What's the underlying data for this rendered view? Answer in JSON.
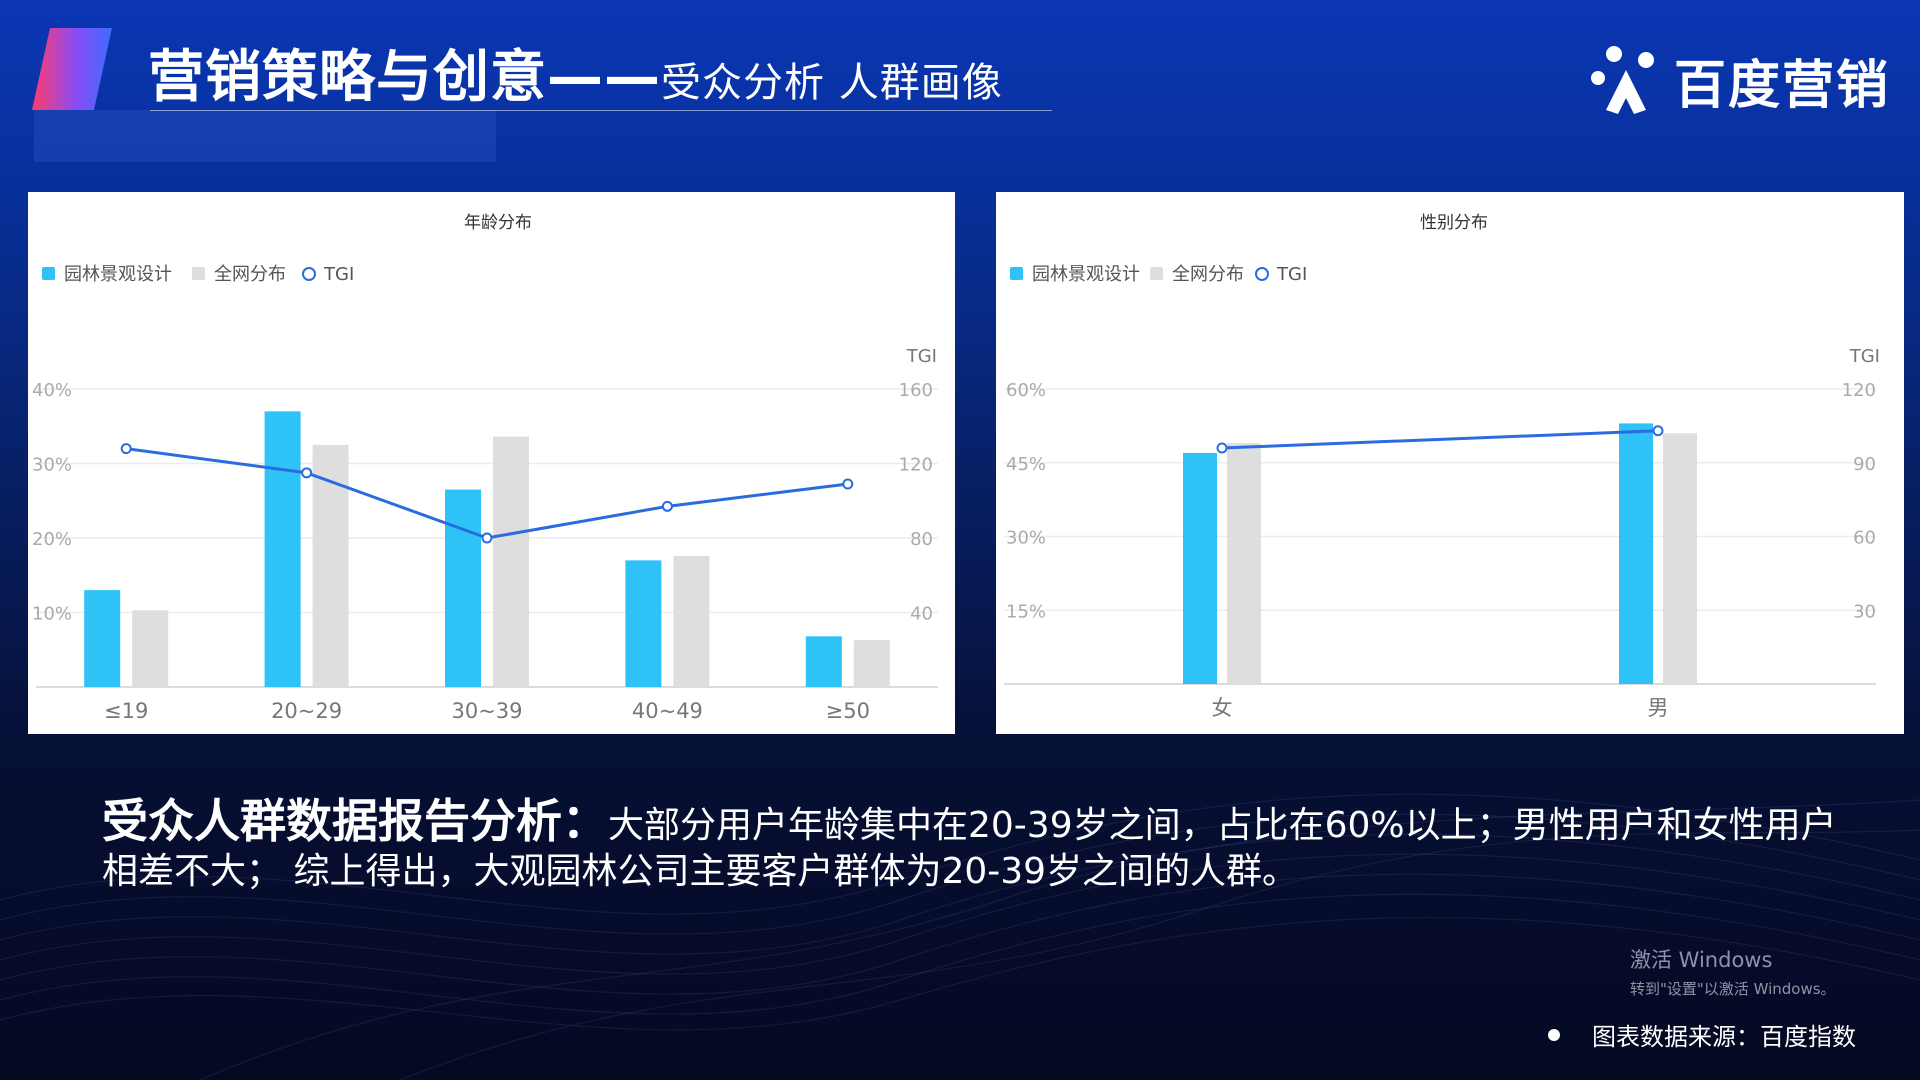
{
  "header": {
    "title_main": "营销策略与创意——",
    "title_sub": "受众分析 人群画像",
    "brand_name": "百度营销",
    "brand_icon": "baidu-paw-icon"
  },
  "colors": {
    "primary_series": "#2ec2f7",
    "secondary_series": "#dedede",
    "tgi_line": "#2a6be0"
  },
  "chart_data": [
    {
      "type": "bar",
      "title": "年龄分布",
      "legend": [
        "园林景观设计",
        "全网分布",
        "TGI"
      ],
      "categories": [
        "≤19",
        "20~29",
        "30~39",
        "40~49",
        "≥50"
      ],
      "series": [
        {
          "name": "园林景观设计",
          "values": [
            13,
            37,
            26.5,
            17,
            6.8
          ]
        },
        {
          "name": "全网分布",
          "values": [
            10.3,
            32.5,
            33.6,
            17.6,
            6.3
          ]
        },
        {
          "name": "TGI",
          "values": [
            128,
            115,
            80,
            97,
            109
          ],
          "axis": "right",
          "kind": "line"
        }
      ],
      "y_left_ticks": [
        "40%",
        "30%",
        "20%",
        "10%"
      ],
      "y_left_range": [
        0,
        40
      ],
      "y_right_label": "TGI",
      "y_right_ticks": [
        "160",
        "120",
        "80",
        "40"
      ],
      "y_right_range": [
        0,
        160
      ],
      "grid": true,
      "legend_position": "top-left"
    },
    {
      "type": "bar",
      "title": "性别分布",
      "legend": [
        "园林景观设计",
        "全网分布",
        "TGI"
      ],
      "categories": [
        "女",
        "男"
      ],
      "series": [
        {
          "name": "园林景观设计",
          "values": [
            47,
            53
          ]
        },
        {
          "name": "全网分布",
          "values": [
            49,
            51
          ]
        },
        {
          "name": "TGI",
          "values": [
            96,
            103
          ],
          "axis": "right",
          "kind": "line"
        }
      ],
      "y_left_ticks": [
        "60%",
        "45%",
        "30%",
        "15%"
      ],
      "y_left_range": [
        0,
        60
      ],
      "y_right_label": "TGI",
      "y_right_ticks": [
        "120",
        "90",
        "60",
        "30"
      ],
      "y_right_range": [
        0,
        120
      ],
      "grid": true,
      "legend_position": "top-left"
    }
  ],
  "summary": {
    "lead": "受众人群数据报告分析：",
    "body": "大部分用户年龄集中在20-39岁之间，占比在60%以上；男性用户和女性用户相差不大；  综上得出，大观园林公司主要客户群体为20-39岁之间的人群。"
  },
  "watermark": {
    "line1": "激活 Windows",
    "line2": "转到\"设置\"以激活 Windows。"
  },
  "source": "图表数据来源：百度指数"
}
